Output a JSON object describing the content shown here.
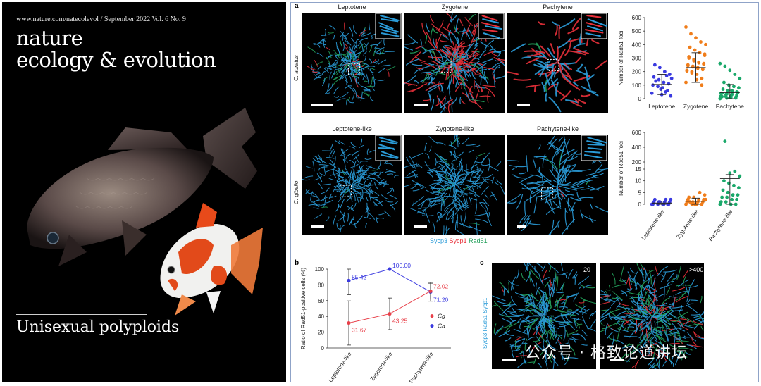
{
  "cover": {
    "header": "www.nature.com/natecolevol / September 2022 Vol. 6 No. 9",
    "title_line1": "nature",
    "title_line2": "ecology & evolution",
    "topic": "Unisexual polyploids"
  },
  "figure": {
    "panel_a": "a",
    "panel_b": "b",
    "panel_c": "c",
    "species_top": "C. auratus",
    "species_bottom": "C. gibelio",
    "top_stages": [
      "Leptotene",
      "Zygotene",
      "Pachytene"
    ],
    "bottom_stages": [
      "Leptotene-like",
      "Zygotene-like",
      "Pachytene-like"
    ],
    "stain_legend": {
      "sycp3": "Sycp3",
      "sycp1": "Sycp1",
      "rad51": "Rad51"
    },
    "colors": {
      "sycp3": "#2a9bd8",
      "sycp1": "#e8303a",
      "rad51": "#22a05a",
      "ca": "#3a3ae0",
      "cg": "#e8404a",
      "lep": "#3a3ae0",
      "zyg": "#f07d1a",
      "pac": "#1aa86a"
    },
    "panel_c_labels": {
      "left": "20",
      "right": ">400",
      "stain": "Sycp3 Rad51 Sycp1"
    },
    "watermark": "公众号 · 格致论道讲坛"
  },
  "chart_data": [
    {
      "type": "scatter",
      "id": "a-top",
      "categories": [
        "Leptotene",
        "Zygotene",
        "Pachytene"
      ],
      "ylabel": "Number of Rad51 foci",
      "ylim": [
        0,
        600
      ],
      "yticks": [
        0,
        100,
        200,
        300,
        400,
        500,
        600
      ],
      "series": [
        {
          "values": [
            40,
            60,
            80,
            90,
            100,
            110,
            120,
            140,
            160,
            180,
            200,
            230,
            250,
            20,
            50,
            70,
            130,
            150,
            170,
            30
          ],
          "mean": 105,
          "sd": 75
        },
        {
          "values": [
            120,
            150,
            180,
            200,
            210,
            220,
            230,
            240,
            250,
            260,
            270,
            280,
            300,
            320,
            340,
            360,
            380,
            400,
            420,
            450,
            480,
            530,
            100,
            140,
            190,
            205,
            215,
            225,
            235,
            245,
            255,
            265,
            290,
            310,
            330
          ],
          "mean": 230,
          "sd": 110
        },
        {
          "values": [
            0,
            5,
            10,
            15,
            20,
            25,
            30,
            35,
            40,
            45,
            50,
            60,
            70,
            80,
            90,
            100,
            120,
            150,
            180,
            210,
            240,
            260,
            10,
            20,
            30,
            40,
            50,
            60,
            5,
            15
          ],
          "mean": 45,
          "sd": 60
        }
      ]
    },
    {
      "type": "scatter",
      "id": "a-bottom",
      "categories": [
        "Leptotene-like",
        "Zygotene-like",
        "Pachytene-like"
      ],
      "ylabel": "Number of Rad51 foci",
      "yticks": [
        0,
        5,
        10,
        15,
        200,
        400,
        600
      ],
      "series": [
        {
          "values": [
            0,
            0,
            0,
            0,
            0,
            0,
            0,
            1,
            1,
            1,
            1,
            1,
            2,
            2,
            2
          ],
          "mean": 0.5,
          "sd": 0.8
        },
        {
          "values": [
            0,
            0,
            0,
            0,
            1,
            1,
            1,
            1,
            2,
            2,
            2,
            3,
            3,
            4,
            5,
            0,
            1,
            2
          ],
          "mean": 1.3,
          "sd": 1.3
        },
        {
          "values": [
            0,
            0,
            0,
            1,
            1,
            2,
            2,
            3,
            3,
            4,
            4,
            5,
            6,
            7,
            8,
            9,
            10,
            12,
            14,
            50,
            480
          ],
          "mean": 11,
          "sd": 19
        }
      ]
    },
    {
      "type": "line",
      "id": "b",
      "categories": [
        "Leptotene-like",
        "Zygotene-like",
        "Pachytene-like"
      ],
      "ylabel": "Ratio of Rad51-positive cells (%)",
      "ylim": [
        0,
        100
      ],
      "yticks": [
        0,
        20,
        40,
        60,
        80,
        100
      ],
      "series": [
        {
          "name": "Ca",
          "values": [
            85.42,
            100.0,
            71.2
          ],
          "labels": [
            "85.42",
            "100.00",
            "71.20"
          ],
          "err": [
            18,
            0,
            12
          ]
        },
        {
          "name": "Cg",
          "values": [
            31.67,
            43.25,
            72.02
          ],
          "labels": [
            "31.67",
            "43.25",
            "72.02"
          ],
          "err": [
            28,
            20,
            10
          ]
        }
      ]
    }
  ]
}
